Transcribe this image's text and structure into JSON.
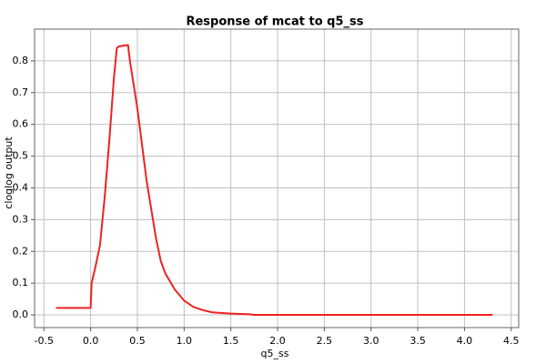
{
  "chart_data": {
    "type": "line",
    "title": "Response of mcat to q5_ss",
    "x_label": "q5_ss",
    "y_label": "cloglog output",
    "color": "#ee2222",
    "grid": true,
    "x": [
      -0.37,
      0.0,
      0.01,
      0.05,
      0.1,
      0.15,
      0.2,
      0.25,
      0.28,
      0.3,
      0.35,
      0.4,
      0.42,
      0.5,
      0.6,
      0.65,
      0.7,
      0.75,
      0.8,
      0.9,
      1.0,
      1.1,
      1.2,
      1.3,
      1.5,
      1.7,
      1.75,
      4.3
    ],
    "values": [
      0.022,
      0.022,
      0.1,
      0.15,
      0.22,
      0.37,
      0.55,
      0.75,
      0.84,
      0.845,
      0.848,
      0.85,
      0.8,
      0.65,
      0.42,
      0.33,
      0.24,
      0.17,
      0.13,
      0.08,
      0.045,
      0.025,
      0.015,
      0.008,
      0.004,
      0.002,
      0.0,
      0.0
    ],
    "xlim": [
      -0.6,
      4.58
    ],
    "ylim": [
      -0.04,
      0.9
    ],
    "xticks": [
      -0.5,
      {
        "value": 0,
        "label": "0.0"
      },
      0.5,
      {
        "value": 1,
        "label": "1.0"
      },
      1.5,
      {
        "value": 2,
        "label": "2.0"
      },
      2.5,
      {
        "value": 3,
        "label": "3.0"
      },
      3.5,
      {
        "value": 4,
        "label": "4.0"
      },
      4.5
    ],
    "yticks": [
      {
        "value": 0,
        "label": "0.0"
      },
      0.1,
      0.2,
      0.3,
      0.4,
      0.5,
      0.6,
      0.7,
      0.8
    ]
  }
}
